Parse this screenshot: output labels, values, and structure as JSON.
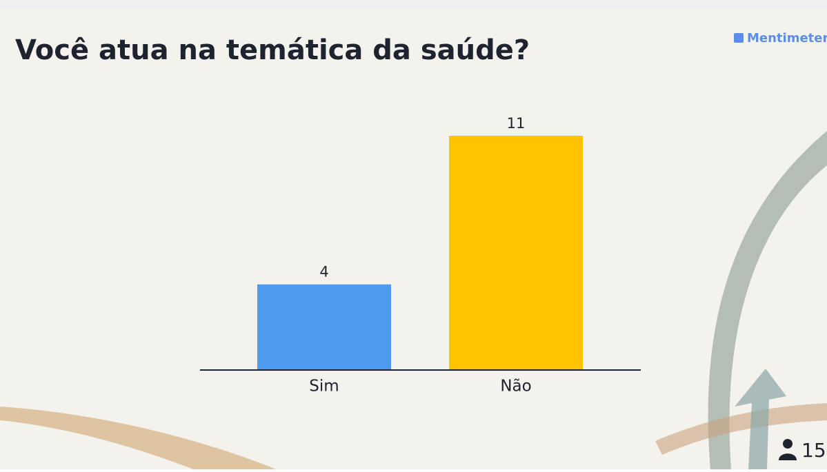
{
  "chart_data": {
    "type": "bar",
    "title": "Você atua na temática da saúde?",
    "categories": [
      "Sim",
      "Não"
    ],
    "values": [
      4,
      11
    ],
    "colors": [
      "#4e9af1",
      "#ffc400"
    ]
  },
  "brand": "Mentimeter",
  "participants": 15
}
